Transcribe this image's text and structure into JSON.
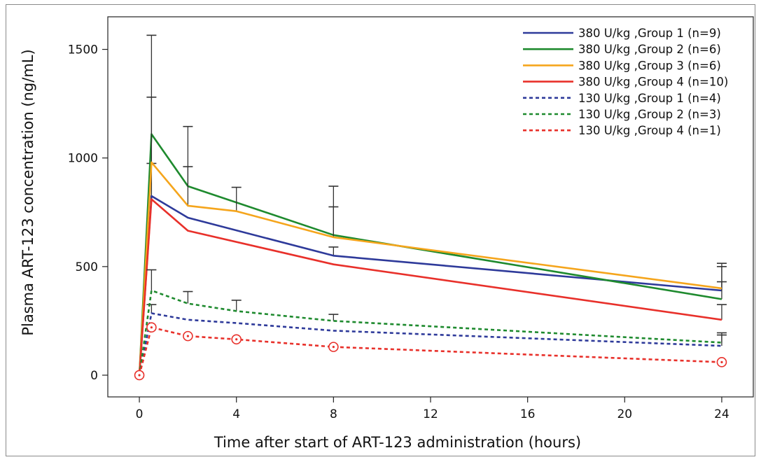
{
  "chart_data": {
    "type": "line",
    "xlabel": "Time after start of ART-123 administration (hours)",
    "ylabel": "Plasma ART-123 concentration (ng/mL)",
    "xlim": [
      -1.3,
      25.3
    ],
    "ylim": [
      -100,
      1650
    ],
    "xticks": [
      0,
      4,
      8,
      12,
      16,
      20,
      24
    ],
    "yticks": [
      0,
      500,
      1000,
      1500
    ],
    "legend_position": "top-right",
    "grid": false,
    "series": [
      {
        "name": "380 U/kg ,Group 1 (n=9)",
        "color": "#2e3a9a",
        "dash": "solid",
        "x": [
          0,
          0.5,
          2,
          8,
          24
        ],
        "y": [
          0,
          825,
          725,
          550,
          390
        ],
        "err": [
          0,
          150,
          0,
          40,
          110
        ]
      },
      {
        "name": "380 U/kg ,Group 2 (n=6)",
        "color": "#1e8a2e",
        "dash": "solid",
        "x": [
          0,
          0.5,
          2,
          8,
          24
        ],
        "y": [
          0,
          1110,
          870,
          645,
          350
        ],
        "err": [
          0,
          455,
          275,
          225,
          80
        ]
      },
      {
        "name": "380 U/kg ,Group 3 (n=6)",
        "color": "#f5a51c",
        "dash": "solid",
        "x": [
          0,
          0.5,
          2,
          4,
          8,
          24
        ],
        "y": [
          0,
          980,
          780,
          755,
          635,
          400
        ],
        "err": [
          0,
          300,
          180,
          110,
          140,
          115
        ]
      },
      {
        "name": "380 U/kg ,Group 4 (n=10)",
        "color": "#e8302a",
        "dash": "solid",
        "x": [
          0,
          0.5,
          2,
          8,
          24
        ],
        "y": [
          0,
          810,
          665,
          510,
          255
        ],
        "err": [
          0,
          0,
          0,
          0,
          70
        ]
      },
      {
        "name": "130 U/kg ,Group 1 (n=4)",
        "color": "#2e3a9a",
        "dash": "dashed",
        "x": [
          0,
          0.5,
          2,
          4,
          8,
          24
        ],
        "y": [
          0,
          285,
          255,
          240,
          205,
          135
        ],
        "err": [
          0,
          40,
          0,
          0,
          0,
          50
        ]
      },
      {
        "name": "130 U/kg ,Group 2 (n=3)",
        "color": "#1e8a2e",
        "dash": "dashed",
        "x": [
          0,
          0.5,
          2,
          4,
          8,
          24
        ],
        "y": [
          0,
          390,
          330,
          295,
          250,
          150
        ],
        "err": [
          0,
          95,
          55,
          50,
          30,
          45
        ]
      },
      {
        "name": "130 U/kg ,Group 4 (n=1)",
        "color": "#e8302a",
        "dash": "dashed",
        "marker": "circle",
        "x": [
          0,
          0.5,
          2,
          4,
          8,
          24
        ],
        "y": [
          0,
          220,
          180,
          165,
          130,
          60
        ],
        "err": [
          0,
          0,
          0,
          0,
          0,
          0
        ]
      }
    ]
  }
}
